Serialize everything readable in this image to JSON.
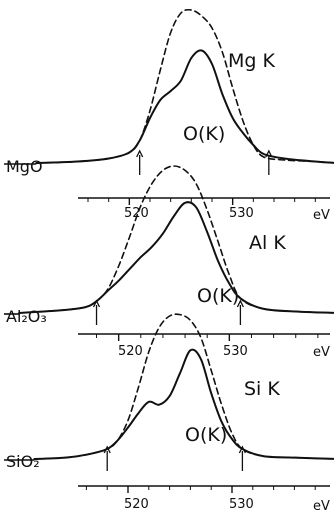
{
  "chart_data": [
    {
      "type": "line",
      "compound": "MgO",
      "xlabel": "eV",
      "xlim": [
        510,
        540
      ],
      "tick_labels": [
        "520",
        "530"
      ],
      "series": [
        {
          "name": "Mg K",
          "style": "dashed",
          "x": [
            511,
            515,
            518,
            520,
            521,
            522,
            523,
            524,
            525,
            526,
            527,
            528,
            529,
            530,
            531,
            532,
            533,
            535,
            538,
            540
          ],
          "y": [
            0.0,
            0.01,
            0.03,
            0.07,
            0.15,
            0.35,
            0.62,
            0.87,
            1.0,
            1.02,
            0.98,
            0.9,
            0.74,
            0.5,
            0.28,
            0.12,
            0.04,
            0.02,
            0.01,
            0.0
          ]
        },
        {
          "name": "O(K)",
          "style": "solid",
          "x": [
            511,
            515,
            518,
            520,
            521,
            522,
            523,
            524,
            525,
            526,
            527,
            528,
            529,
            530,
            531,
            532,
            533,
            535,
            538,
            540
          ],
          "y": [
            0.0,
            0.01,
            0.03,
            0.07,
            0.15,
            0.3,
            0.42,
            0.48,
            0.55,
            0.7,
            0.75,
            0.66,
            0.46,
            0.3,
            0.2,
            0.12,
            0.06,
            0.03,
            0.01,
            0.0
          ]
        }
      ],
      "arrows_at": [
        521,
        533.5
      ]
    },
    {
      "type": "line",
      "compound": "Al₂O₃",
      "xlabel": "eV",
      "xlim": [
        510,
        540
      ],
      "tick_labels": [
        "520",
        "530"
      ],
      "series": [
        {
          "name": "Al K",
          "style": "dashed",
          "x": [
            511,
            515,
            517,
            518,
            519,
            520,
            521,
            522,
            523,
            524,
            525,
            526,
            527,
            528,
            529,
            530,
            531,
            533,
            536,
            540
          ],
          "y": [
            0.0,
            0.02,
            0.04,
            0.08,
            0.16,
            0.32,
            0.52,
            0.73,
            0.88,
            0.97,
            1.0,
            0.97,
            0.88,
            0.7,
            0.48,
            0.26,
            0.1,
            0.03,
            0.01,
            0.0
          ]
        },
        {
          "name": "O(K)",
          "style": "solid",
          "x": [
            511,
            515,
            517,
            518,
            519,
            520,
            521,
            522,
            523,
            524,
            525,
            526,
            527,
            528,
            529,
            530,
            531,
            533,
            536,
            540
          ],
          "y": [
            0.0,
            0.02,
            0.04,
            0.08,
            0.15,
            0.22,
            0.3,
            0.38,
            0.45,
            0.54,
            0.66,
            0.75,
            0.72,
            0.55,
            0.35,
            0.2,
            0.1,
            0.03,
            0.01,
            0.0
          ]
        }
      ],
      "arrows_at": [
        518,
        531
      ]
    },
    {
      "type": "line",
      "compound": "SiO₂",
      "xlabel": "eV",
      "xlim": [
        510,
        540
      ],
      "tick_labels": [
        "520",
        "530"
      ],
      "series": [
        {
          "name": "Si K",
          "style": "dashed",
          "x": [
            511,
            514,
            516,
            518,
            519,
            520,
            521,
            522,
            523,
            524,
            525,
            526,
            527,
            528,
            529,
            530,
            531,
            533,
            536,
            540
          ],
          "y": [
            0.0,
            0.01,
            0.03,
            0.07,
            0.13,
            0.27,
            0.5,
            0.75,
            0.92,
            1.0,
            1.01,
            0.97,
            0.85,
            0.62,
            0.38,
            0.18,
            0.07,
            0.02,
            0.01,
            0.0
          ]
        },
        {
          "name": "O(K)",
          "style": "solid",
          "x": [
            511,
            514,
            516,
            518,
            519,
            520,
            521,
            522,
            523,
            524,
            525,
            526,
            527,
            528,
            529,
            530,
            531,
            533,
            536,
            540
          ],
          "y": [
            0.0,
            0.01,
            0.03,
            0.07,
            0.13,
            0.22,
            0.32,
            0.4,
            0.38,
            0.44,
            0.6,
            0.76,
            0.7,
            0.46,
            0.26,
            0.14,
            0.07,
            0.02,
            0.01,
            0.0
          ]
        }
      ],
      "arrows_at": [
        518,
        531
      ]
    }
  ],
  "labels": {
    "solid_curve": "O(K)"
  }
}
